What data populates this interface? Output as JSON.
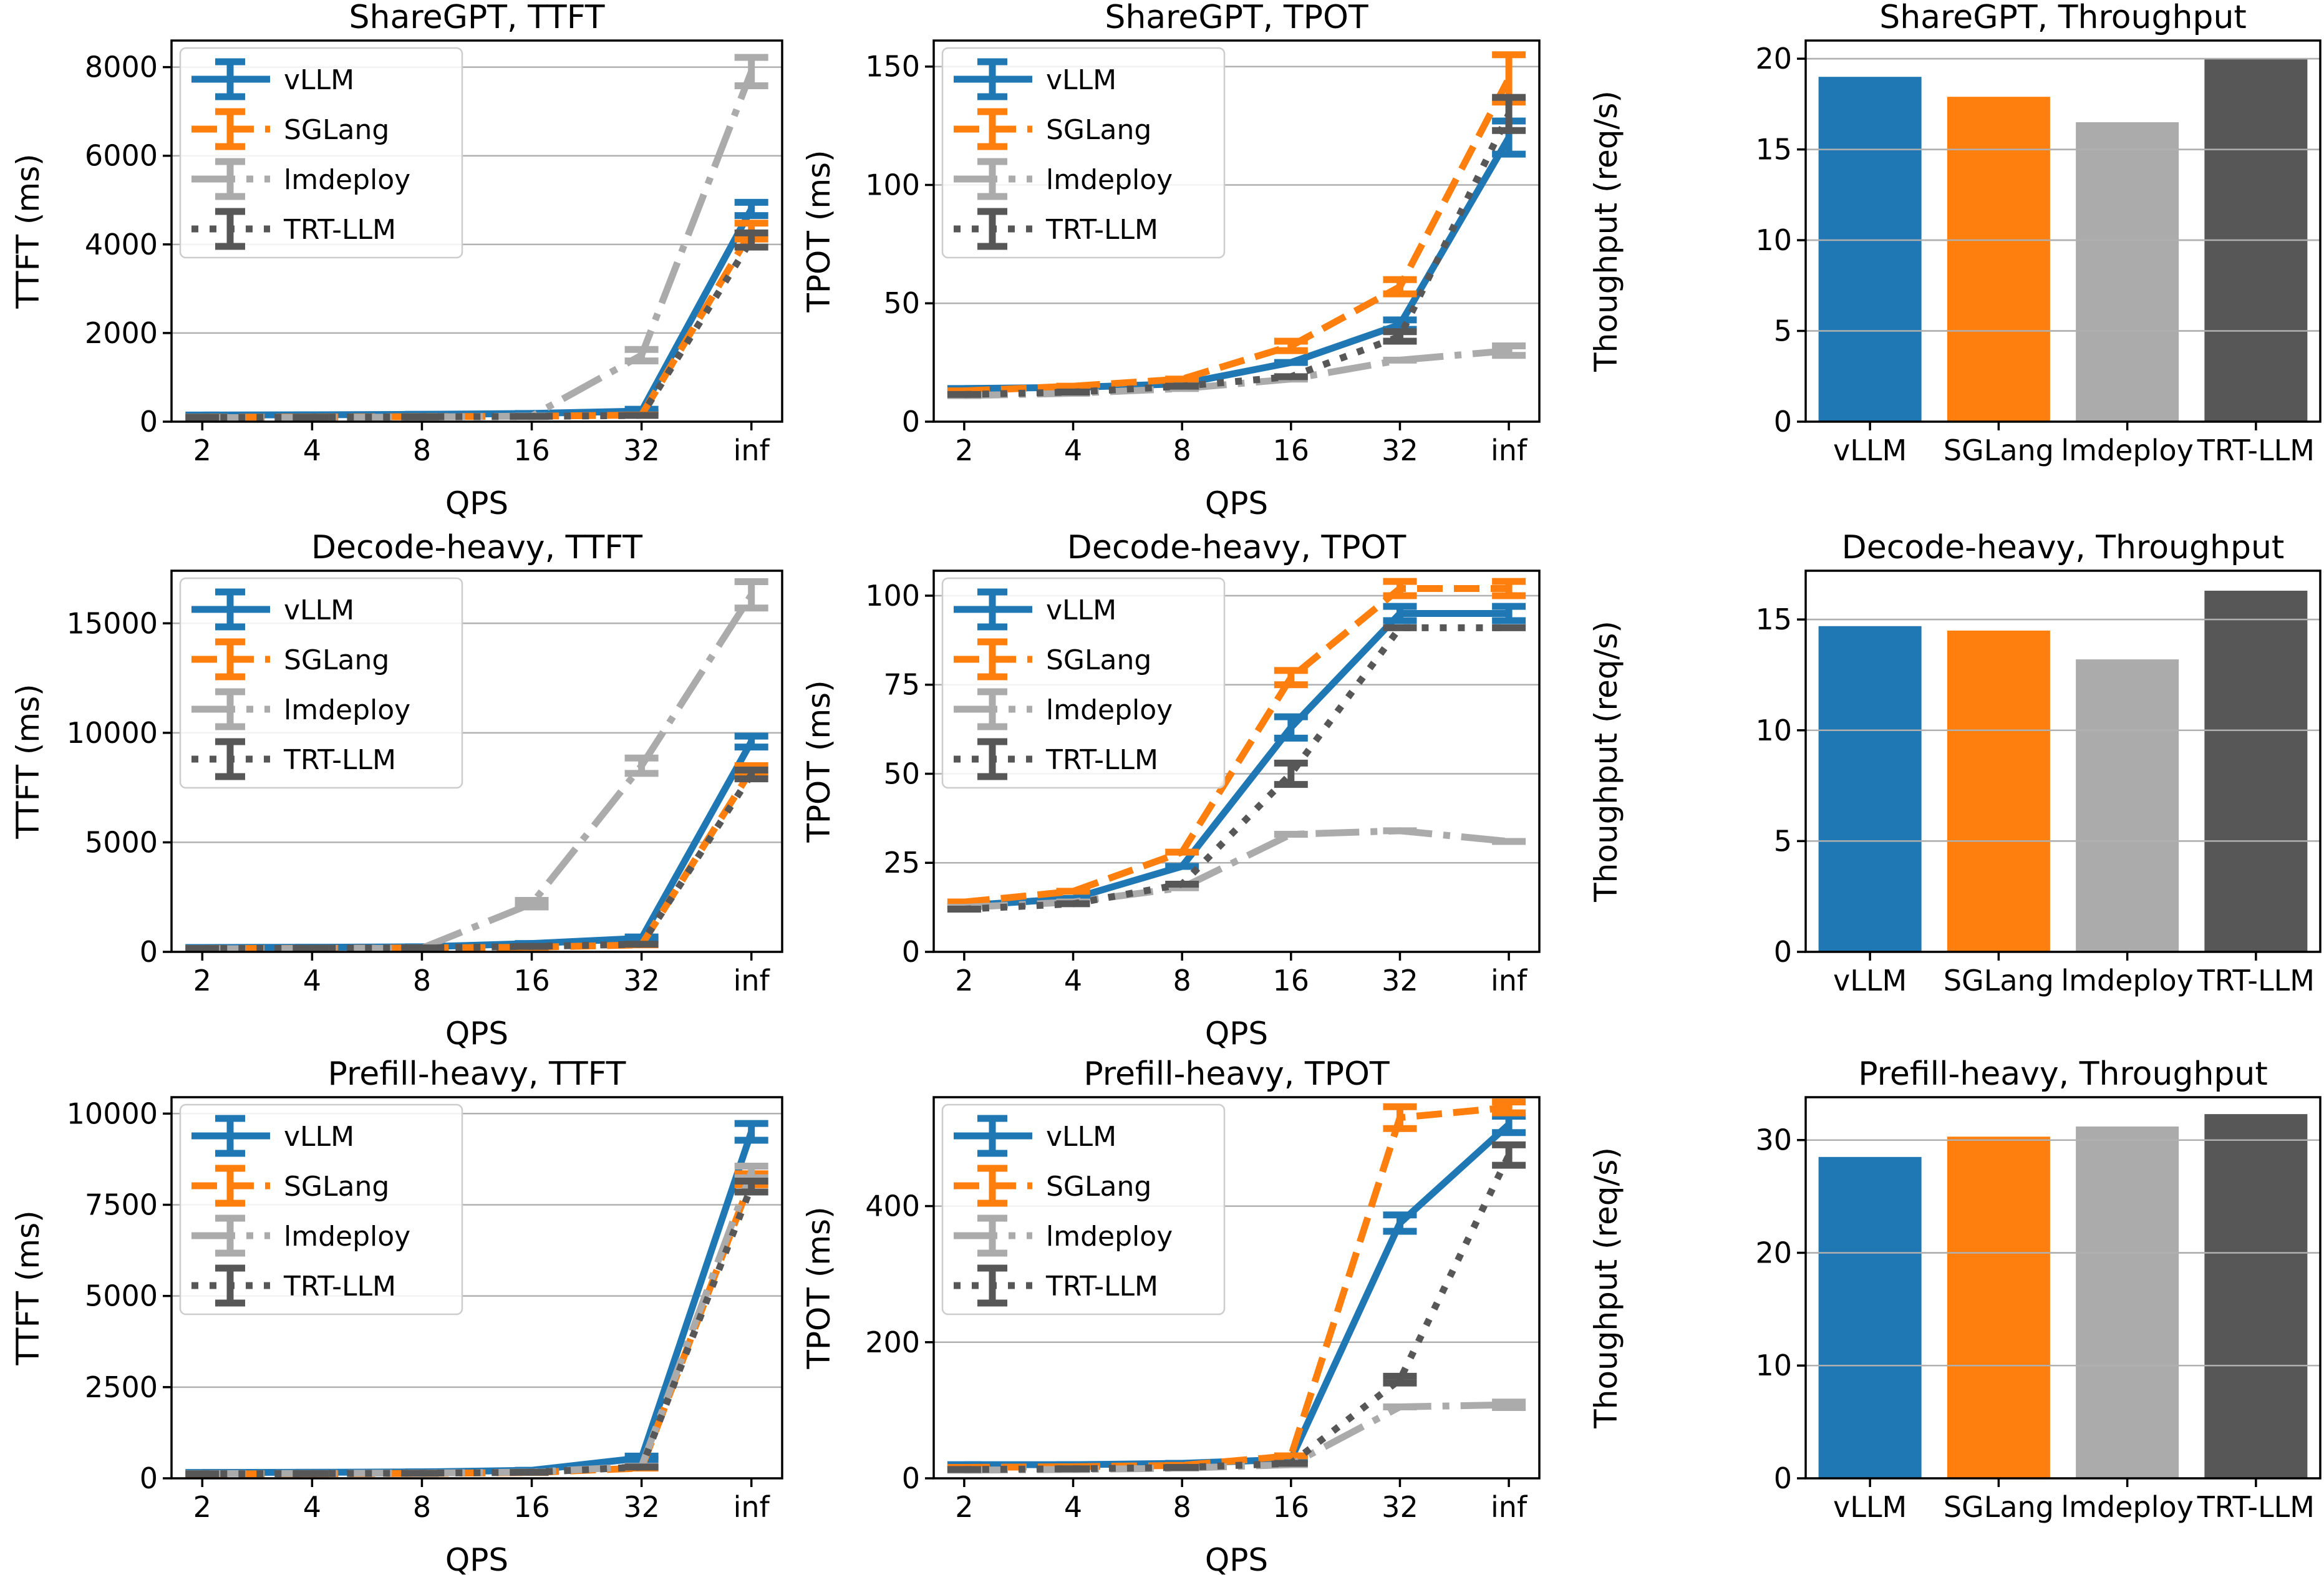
{
  "figure": {
    "background": "#ffffff",
    "grid_color": "#b0b0b0",
    "axis_color": "#000000"
  },
  "styles": {
    "vLLM": {
      "color": "#1f77b4",
      "dash": "solid"
    },
    "SGLang": {
      "color": "#ff7f0e",
      "dash": "dashed"
    },
    "lmdeploy": {
      "color": "#ababab",
      "dash": "dashdot"
    },
    "TRT-LLM": {
      "color": "#575757",
      "dash": "dotted"
    }
  },
  "legend_entries": [
    "vLLM",
    "SGLang",
    "lmdeploy",
    "TRT-LLM"
  ],
  "chart_data": [
    {
      "id": "sharegpt-ttft",
      "type": "line",
      "title": "ShareGPT, TTFT",
      "xlabel": "QPS",
      "ylabel": "TTFT (ms)",
      "x_labels": [
        "2",
        "4",
        "8",
        "16",
        "32",
        "inf"
      ],
      "yticks": [
        0,
        2000,
        4000,
        6000,
        8000
      ],
      "ymax": 8600,
      "legend": true,
      "series": [
        {
          "name": "vLLM",
          "values": [
            150,
            155,
            165,
            185,
            240,
            4800
          ],
          "err": [
            0,
            0,
            0,
            0,
            40,
            150
          ]
        },
        {
          "name": "SGLang",
          "values": [
            100,
            105,
            112,
            122,
            150,
            4300
          ],
          "err": [
            0,
            0,
            0,
            0,
            0,
            180
          ]
        },
        {
          "name": "lmdeploy",
          "values": [
            90,
            95,
            105,
            125,
            1500,
            7900
          ],
          "err": [
            0,
            0,
            0,
            0,
            130,
            320
          ]
        },
        {
          "name": "TRT-LLM",
          "values": [
            95,
            100,
            108,
            118,
            140,
            4100
          ],
          "err": [
            0,
            0,
            0,
            0,
            0,
            160
          ]
        }
      ]
    },
    {
      "id": "sharegpt-tpot",
      "type": "line",
      "title": "ShareGPT, TPOT",
      "xlabel": "QPS",
      "ylabel": "TPOT (ms)",
      "x_labels": [
        "2",
        "4",
        "8",
        "16",
        "32",
        "inf"
      ],
      "yticks": [
        0,
        50,
        100,
        150
      ],
      "ymax": 161,
      "legend": true,
      "series": [
        {
          "name": "vLLM",
          "values": [
            14,
            14.5,
            16,
            25,
            41,
            120
          ],
          "err": [
            0,
            0,
            0,
            0,
            2,
            7
          ]
        },
        {
          "name": "SGLang",
          "values": [
            13,
            15,
            18,
            32,
            57,
            145
          ],
          "err": [
            0,
            0,
            0,
            2,
            3,
            10
          ]
        },
        {
          "name": "lmdeploy",
          "values": [
            11,
            12,
            14,
            18,
            26,
            30
          ],
          "err": [
            0,
            0,
            0,
            0,
            0,
            2
          ]
        },
        {
          "name": "TRT-LLM",
          "values": [
            11.5,
            12.5,
            15,
            19,
            36,
            130
          ],
          "err": [
            0,
            0,
            0,
            0,
            2,
            7
          ]
        }
      ]
    },
    {
      "id": "sharegpt-throughput",
      "type": "bar",
      "title": "ShareGPT, Throughput",
      "ylabel": "Thoughput (req/s)",
      "categories": [
        "vLLM",
        "SGLang",
        "lmdeploy",
        "TRT-LLM"
      ],
      "values": [
        19.0,
        17.9,
        16.5,
        20.0
      ],
      "yticks": [
        0,
        5,
        10,
        15,
        20
      ],
      "ymax": 21
    },
    {
      "id": "decode-heavy-ttft",
      "type": "line",
      "title": "Decode-heavy, TTFT",
      "xlabel": "QPS",
      "ylabel": "TTFT (ms)",
      "x_labels": [
        "2",
        "4",
        "8",
        "16",
        "32",
        "inf"
      ],
      "yticks": [
        0,
        5000,
        10000,
        15000
      ],
      "ymax": 17400,
      "legend": true,
      "series": [
        {
          "name": "vLLM",
          "values": [
            200,
            210,
            230,
            380,
            620,
            9600
          ],
          "err": [
            0,
            0,
            0,
            0,
            60,
            250
          ]
        },
        {
          "name": "SGLang",
          "values": [
            150,
            160,
            180,
            210,
            320,
            8300
          ],
          "err": [
            0,
            0,
            0,
            0,
            0,
            200
          ]
        },
        {
          "name": "lmdeploy",
          "values": [
            140,
            150,
            170,
            2200,
            8500,
            16300
          ],
          "err": [
            0,
            0,
            0,
            150,
            350,
            600
          ]
        },
        {
          "name": "TRT-LLM",
          "values": [
            150,
            160,
            180,
            250,
            350,
            8100
          ],
          "err": [
            0,
            0,
            0,
            0,
            0,
            200
          ]
        }
      ]
    },
    {
      "id": "decode-heavy-tpot",
      "type": "line",
      "title": "Decode-heavy, TPOT",
      "xlabel": "QPS",
      "ylabel": "TPOT (ms)",
      "x_labels": [
        "2",
        "4",
        "8",
        "16",
        "32",
        "inf"
      ],
      "yticks": [
        0,
        25,
        50,
        75,
        100
      ],
      "ymax": 107,
      "legend": true,
      "series": [
        {
          "name": "vLLM",
          "values": [
            13,
            15,
            24,
            63,
            95,
            95
          ],
          "err": [
            0,
            0,
            0,
            3,
            2,
            2
          ]
        },
        {
          "name": "SGLang",
          "values": [
            14,
            17,
            28,
            77,
            102,
            102
          ],
          "err": [
            0,
            0,
            0,
            2,
            2,
            2
          ]
        },
        {
          "name": "lmdeploy",
          "values": [
            12.5,
            14,
            18,
            33,
            34,
            31
          ],
          "err": [
            0,
            0,
            0,
            0,
            0,
            0
          ]
        },
        {
          "name": "TRT-LLM",
          "values": [
            12,
            13.5,
            19,
            50,
            91,
            91
          ],
          "err": [
            0,
            0,
            0,
            3,
            0,
            0
          ]
        }
      ]
    },
    {
      "id": "decode-heavy-throughput",
      "type": "bar",
      "title": "Decode-heavy, Throughput",
      "ylabel": "Thoughput (req/s)",
      "categories": [
        "vLLM",
        "SGLang",
        "lmdeploy",
        "TRT-LLM"
      ],
      "values": [
        14.7,
        14.5,
        13.2,
        16.3
      ],
      "yticks": [
        0,
        5,
        10,
        15
      ],
      "ymax": 17.2
    },
    {
      "id": "prefill-heavy-ttft",
      "type": "line",
      "title": "Prefill-heavy, TTFT",
      "xlabel": "QPS",
      "ylabel": "TTFT (ms)",
      "x_labels": [
        "2",
        "4",
        "8",
        "16",
        "32",
        "inf"
      ],
      "yticks": [
        0,
        2500,
        5000,
        7500,
        10000
      ],
      "ymax": 10450,
      "legend": true,
      "series": [
        {
          "name": "vLLM",
          "values": [
            160,
            165,
            175,
            220,
            560,
            9500
          ],
          "err": [
            0,
            0,
            0,
            0,
            50,
            230
          ]
        },
        {
          "name": "SGLang",
          "values": [
            120,
            125,
            135,
            160,
            280,
            8200
          ],
          "err": [
            0,
            0,
            0,
            0,
            0,
            150
          ]
        },
        {
          "name": "lmdeploy",
          "values": [
            130,
            135,
            145,
            170,
            330,
            8400
          ],
          "err": [
            0,
            0,
            0,
            0,
            0,
            160
          ]
        },
        {
          "name": "TRT-LLM",
          "values": [
            125,
            130,
            140,
            165,
            310,
            8000
          ],
          "err": [
            0,
            0,
            0,
            0,
            0,
            150
          ]
        }
      ]
    },
    {
      "id": "prefill-heavy-tpot",
      "type": "line",
      "title": "Prefill-heavy, TPOT",
      "xlabel": "QPS",
      "ylabel": "TPOT (ms)",
      "x_labels": [
        "2",
        "4",
        "8",
        "16",
        "32",
        "inf"
      ],
      "yticks": [
        0,
        200,
        400
      ],
      "ymax": 560,
      "legend": true,
      "series": [
        {
          "name": "vLLM",
          "values": [
            20,
            20,
            22,
            28,
            375,
            520
          ],
          "err": [
            0,
            0,
            0,
            0,
            12,
            12
          ]
        },
        {
          "name": "SGLang",
          "values": [
            16,
            17,
            19,
            33,
            530,
            545
          ],
          "err": [
            0,
            0,
            0,
            0,
            16,
            8
          ]
        },
        {
          "name": "lmdeploy",
          "values": [
            12,
            13,
            15,
            20,
            105,
            108
          ],
          "err": [
            0,
            0,
            0,
            0,
            0,
            4
          ]
        },
        {
          "name": "TRT-LLM",
          "values": [
            13,
            14,
            16,
            22,
            145,
            475
          ],
          "err": [
            0,
            0,
            0,
            0,
            5,
            15
          ]
        }
      ]
    },
    {
      "id": "prefill-heavy-throughput",
      "type": "bar",
      "title": "Prefill-heavy, Throughput",
      "ylabel": "Thoughput (req/s)",
      "categories": [
        "vLLM",
        "SGLang",
        "lmdeploy",
        "TRT-LLM"
      ],
      "values": [
        28.5,
        30.3,
        31.2,
        32.3
      ],
      "yticks": [
        0,
        10,
        20,
        30
      ],
      "ymax": 33.8
    }
  ]
}
